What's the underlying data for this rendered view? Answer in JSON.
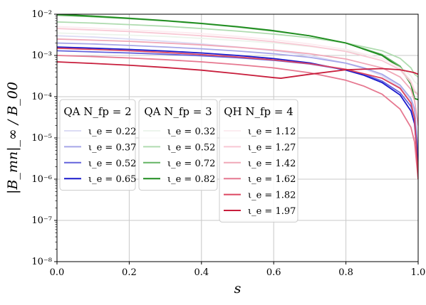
{
  "chart_data": {
    "type": "line",
    "title": "",
    "xlabel": "s",
    "ylabel": "|B_mn|_∞ / B_00",
    "x_scale": "linear",
    "y_scale": "log",
    "xlim": [
      0.0,
      1.0
    ],
    "ylim": [
      1e-08,
      0.01
    ],
    "grid": true,
    "x_ticks": [
      0.0,
      0.2,
      0.4,
      0.6,
      0.8,
      1.0
    ],
    "x_tick_labels": [
      "0.0",
      "0.2",
      "0.4",
      "0.6",
      "0.8",
      "1.0"
    ],
    "y_ticks": [
      1e-08,
      1e-07,
      1e-06,
      1e-05,
      0.0001,
      0.001,
      0.01
    ],
    "y_tick_labels": [
      "10⁻⁸",
      "10⁻⁷",
      "10⁻⁶",
      "10⁻⁵",
      "10⁻⁴",
      "10⁻³",
      "10⁻²"
    ],
    "legends": [
      {
        "title": "QA N_fp = 2",
        "placement": "lower-left",
        "entries": [
          "ι_e = 0.22",
          "ι_e = 0.37",
          "ι_e = 0.52",
          "ι_e = 0.65"
        ]
      },
      {
        "title": "QA N_fp = 3",
        "placement": "lower-center-left",
        "entries": [
          "ι_e = 0.32",
          "ι_e = 0.52",
          "ι_e = 0.72",
          "ι_e = 0.82"
        ]
      },
      {
        "title": "QH N_fp = 4",
        "placement": "lower-center",
        "entries": [
          "ι_e = 1.12",
          "ι_e = 1.27",
          "ι_e = 1.42",
          "ι_e = 1.62",
          "ι_e = 1.82",
          "ι_e = 1.97"
        ]
      }
    ],
    "series": [
      {
        "name": "ι_e = 0.22",
        "group": 0,
        "color": "#dcdcf4",
        "x": [
          0,
          0.1,
          0.2,
          0.3,
          0.4,
          0.5,
          0.6,
          0.7,
          0.8,
          0.85,
          0.9,
          0.95,
          0.98,
          0.99,
          1.0
        ],
        "y": [
          0.003,
          0.0028,
          0.0025,
          0.0022,
          0.0019,
          0.0016,
          0.0013,
          0.001,
          0.00065,
          0.00048,
          0.00032,
          0.00017,
          8e-05,
          4.5e-05,
          4e-06
        ]
      },
      {
        "name": "ι_e = 0.37",
        "group": 0,
        "color": "#a6a6e8",
        "x": [
          0,
          0.1,
          0.2,
          0.3,
          0.4,
          0.5,
          0.6,
          0.7,
          0.8,
          0.85,
          0.9,
          0.95,
          0.98,
          0.99,
          1.0
        ],
        "y": [
          0.002,
          0.0019,
          0.00175,
          0.0016,
          0.00145,
          0.00128,
          0.0011,
          0.0009,
          0.00065,
          0.0005,
          0.00035,
          0.00019,
          9e-05,
          5e-05,
          4e-06
        ]
      },
      {
        "name": "ι_e = 0.52",
        "group": 0,
        "color": "#6363dc",
        "x": [
          0,
          0.1,
          0.2,
          0.3,
          0.4,
          0.5,
          0.6,
          0.7,
          0.8,
          0.85,
          0.9,
          0.95,
          0.98,
          0.99,
          1.0
        ],
        "y": [
          0.0013,
          0.00122,
          0.00115,
          0.00107,
          0.00098,
          0.00088,
          0.00076,
          0.00062,
          0.00045,
          0.00035,
          0.00024,
          0.000125,
          5.8e-05,
          3e-05,
          3e-06
        ]
      },
      {
        "name": "ι_e = 0.65",
        "group": 0,
        "color": "#1a1acc",
        "x": [
          0,
          0.1,
          0.2,
          0.3,
          0.4,
          0.5,
          0.6,
          0.7,
          0.8,
          0.85,
          0.9,
          0.95,
          0.98,
          0.99,
          1.0
        ],
        "y": [
          0.0016,
          0.0015,
          0.0014,
          0.00128,
          0.00115,
          0.001,
          0.00084,
          0.00066,
          0.00044,
          0.00033,
          0.00022,
          0.00011,
          4.5e-05,
          2.2e-05,
          2e-06
        ]
      },
      {
        "name": "ι_e = 0.32",
        "group": 1,
        "color": "#ecf4ec",
        "x": [
          0,
          0.1,
          0.2,
          0.3,
          0.4,
          0.5,
          0.6,
          0.7,
          0.8,
          0.9,
          0.95,
          0.98,
          0.99,
          1.0
        ],
        "y": [
          0.0035,
          0.0033,
          0.0031,
          0.0029,
          0.0026,
          0.0023,
          0.002,
          0.00165,
          0.0013,
          0.00085,
          0.00055,
          0.00032,
          0.00023,
          0.0002
        ]
      },
      {
        "name": "ι_e = 0.52",
        "group": 1,
        "color": "#b0dcb0",
        "x": [
          0,
          0.1,
          0.2,
          0.3,
          0.4,
          0.5,
          0.6,
          0.7,
          0.8,
          0.9,
          0.95,
          0.98,
          0.99,
          1.0
        ],
        "y": [
          0.0065,
          0.0061,
          0.0056,
          0.0051,
          0.0045,
          0.0039,
          0.0033,
          0.0027,
          0.002,
          0.0013,
          0.00085,
          0.0005,
          0.00035,
          0.0003
        ]
      },
      {
        "name": "ι_e = 0.72",
        "group": 1,
        "color": "#64b464",
        "x": [
          0,
          0.1,
          0.2,
          0.3,
          0.4,
          0.5,
          0.6,
          0.7,
          0.8,
          0.9,
          0.95,
          0.98,
          0.99,
          1.0
        ],
        "y": [
          0.0095,
          0.0087,
          0.0078,
          0.0069,
          0.0059,
          0.0049,
          0.0039,
          0.003,
          0.002,
          0.00105,
          0.00055,
          0.00022,
          0.00013,
          0.00012
        ]
      },
      {
        "name": "ι_e = 0.82",
        "group": 1,
        "color": "#1e8c1e",
        "x": [
          0,
          0.1,
          0.2,
          0.3,
          0.4,
          0.5,
          0.6,
          0.7,
          0.8,
          0.9,
          0.95,
          0.98,
          0.99,
          1.0
        ],
        "y": [
          0.01,
          0.009,
          0.008,
          0.007,
          0.006,
          0.005,
          0.004,
          0.003,
          0.002,
          0.001,
          0.0005,
          0.0002,
          9e-05,
          8.5e-05
        ]
      },
      {
        "name": "ι_e = 1.12",
        "group": 2,
        "color": "#fcecf0",
        "x": [
          0,
          0.1,
          0.2,
          0.3,
          0.4,
          0.5,
          0.6,
          0.7,
          0.8,
          0.9,
          0.95,
          0.98,
          0.99,
          1.0
        ],
        "y": [
          0.005,
          0.0046,
          0.0042,
          0.0038,
          0.0034,
          0.0029,
          0.0024,
          0.0019,
          0.0014,
          0.00085,
          0.0005,
          0.00025,
          0.00015,
          0.00012
        ]
      },
      {
        "name": "ι_e = 1.27",
        "group": 2,
        "color": "#f8c8d4",
        "x": [
          0,
          0.1,
          0.2,
          0.3,
          0.4,
          0.5,
          0.6,
          0.7,
          0.8,
          0.9,
          0.95,
          0.98,
          0.99,
          1.0
        ],
        "y": [
          0.0045,
          0.00415,
          0.0038,
          0.0034,
          0.003,
          0.0026,
          0.00215,
          0.0017,
          0.00125,
          0.00075,
          0.00045,
          0.00022,
          0.00013,
          0.00011
        ]
      },
      {
        "name": "ι_e = 1.42",
        "group": 2,
        "color": "#f0a8b8",
        "x": [
          0,
          0.1,
          0.2,
          0.3,
          0.4,
          0.5,
          0.6,
          0.7,
          0.8,
          0.9,
          0.95,
          0.98,
          0.99,
          1.0
        ],
        "y": [
          0.0025,
          0.00235,
          0.0022,
          0.002,
          0.0018,
          0.00158,
          0.00135,
          0.0011,
          0.00082,
          0.0005,
          0.0003,
          0.00015,
          8e-05,
          2e-05
        ]
      },
      {
        "name": "ι_e = 1.62",
        "group": 2,
        "color": "#e67890",
        "x": [
          0,
          0.1,
          0.2,
          0.3,
          0.4,
          0.5,
          0.6,
          0.7,
          0.8,
          0.85,
          0.9,
          0.95,
          0.98,
          0.99,
          1.0
        ],
        "y": [
          0.001,
          0.00094,
          0.00087,
          0.00079,
          0.0007,
          0.0006,
          0.0005,
          0.00038,
          0.00025,
          0.00018,
          0.000115,
          5e-05,
          1.8e-05,
          8e-06,
          1e-06
        ]
      },
      {
        "name": "ι_e = 1.82",
        "group": 2,
        "color": "#dc4660",
        "x": [
          0,
          0.1,
          0.2,
          0.3,
          0.4,
          0.5,
          0.6,
          0.7,
          0.8,
          0.9,
          0.95,
          0.98,
          0.99,
          1.0
        ],
        "y": [
          0.0015,
          0.0014,
          0.0013,
          0.00118,
          0.00105,
          0.00092,
          0.00078,
          0.00063,
          0.00046,
          0.00028,
          0.00016,
          7e-05,
          3e-05,
          1e-06
        ]
      },
      {
        "name": "ι_e = 1.97",
        "group": 2,
        "color": "#c81e3c",
        "x": [
          0,
          0.1,
          0.2,
          0.3,
          0.4,
          0.5,
          0.6,
          0.62,
          0.7,
          0.8,
          0.9,
          0.95,
          0.98,
          0.99,
          1.0
        ],
        "y": [
          0.0007,
          0.00064,
          0.00058,
          0.00051,
          0.00044,
          0.00036,
          0.00029,
          0.00028,
          0.00035,
          0.00045,
          0.00048,
          0.00045,
          0.0004,
          0.00038,
          0.00035
        ]
      }
    ]
  }
}
